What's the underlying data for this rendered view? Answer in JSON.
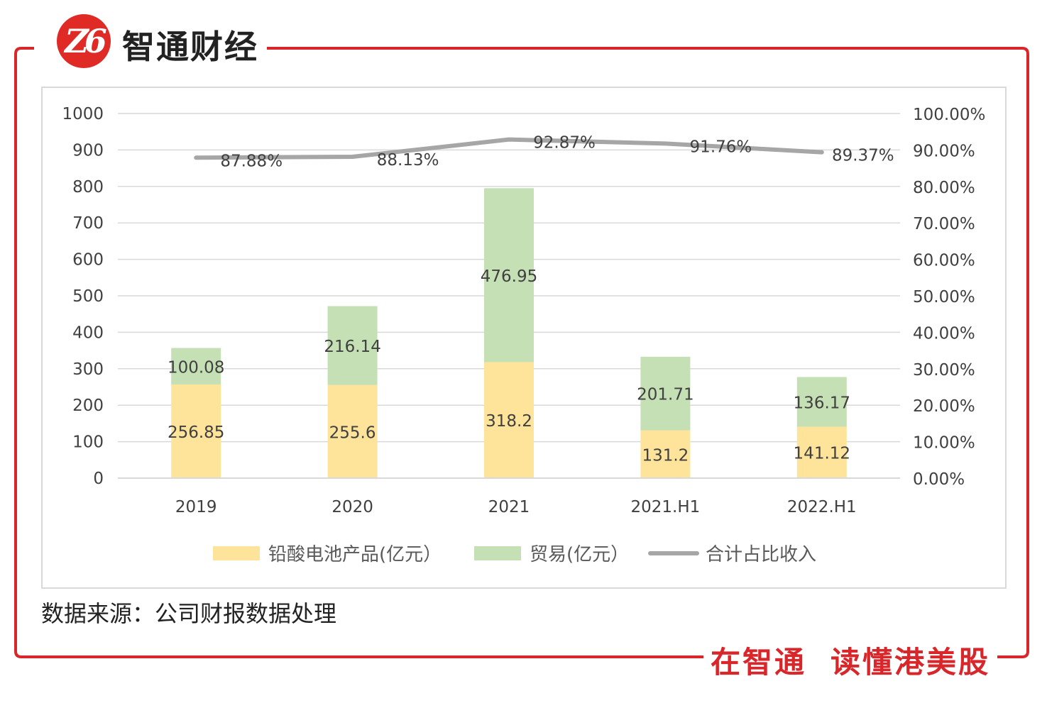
{
  "brand": {
    "logo_text": "Z6",
    "name": "智通财经",
    "slogan_a": "在智通",
    "slogan_b": "读懂港美股"
  },
  "colors": {
    "frame": "#d9262a",
    "lead": "#fde49a",
    "trade": "#c5e0b4",
    "ratio": "#a6a6a6"
  },
  "source": "数据来源：公司财报数据处理",
  "chart_data": {
    "type": "bar",
    "stacked": true,
    "categories": [
      "2019",
      "2020",
      "2021",
      "2021.H1",
      "2022.H1"
    ],
    "series": [
      {
        "name": "铅酸电池产品(亿元）",
        "values": [
          256.85,
          255.6,
          318.2,
          131.2,
          141.12
        ],
        "labels": [
          "256.85",
          "255.6",
          "318.2",
          "131.2",
          "141.12"
        ]
      },
      {
        "name": "贸易(亿元）",
        "values": [
          100.08,
          216.14,
          476.95,
          201.71,
          136.17
        ],
        "labels": [
          "100.08",
          "216.14",
          "476.95",
          "201.71",
          "136.17"
        ]
      }
    ],
    "line": {
      "name": "合计占比收入",
      "values": [
        87.88,
        88.13,
        92.87,
        91.76,
        89.37
      ],
      "labels": [
        "87.88%",
        "88.13%",
        "92.87%",
        "91.76%",
        "89.37%"
      ]
    },
    "y_left": {
      "min": 0,
      "max": 1000,
      "step": 100,
      "ticks": [
        "0",
        "100",
        "200",
        "300",
        "400",
        "500",
        "600",
        "700",
        "800",
        "900",
        "1000"
      ]
    },
    "y_right": {
      "min": 0,
      "max": 100,
      "step": 10,
      "ticks": [
        "0.00%",
        "10.00%",
        "20.00%",
        "30.00%",
        "40.00%",
        "50.00%",
        "60.00%",
        "70.00%",
        "80.00%",
        "90.00%",
        "100.00%"
      ]
    },
    "legend_position": "bottom",
    "grid": true
  }
}
